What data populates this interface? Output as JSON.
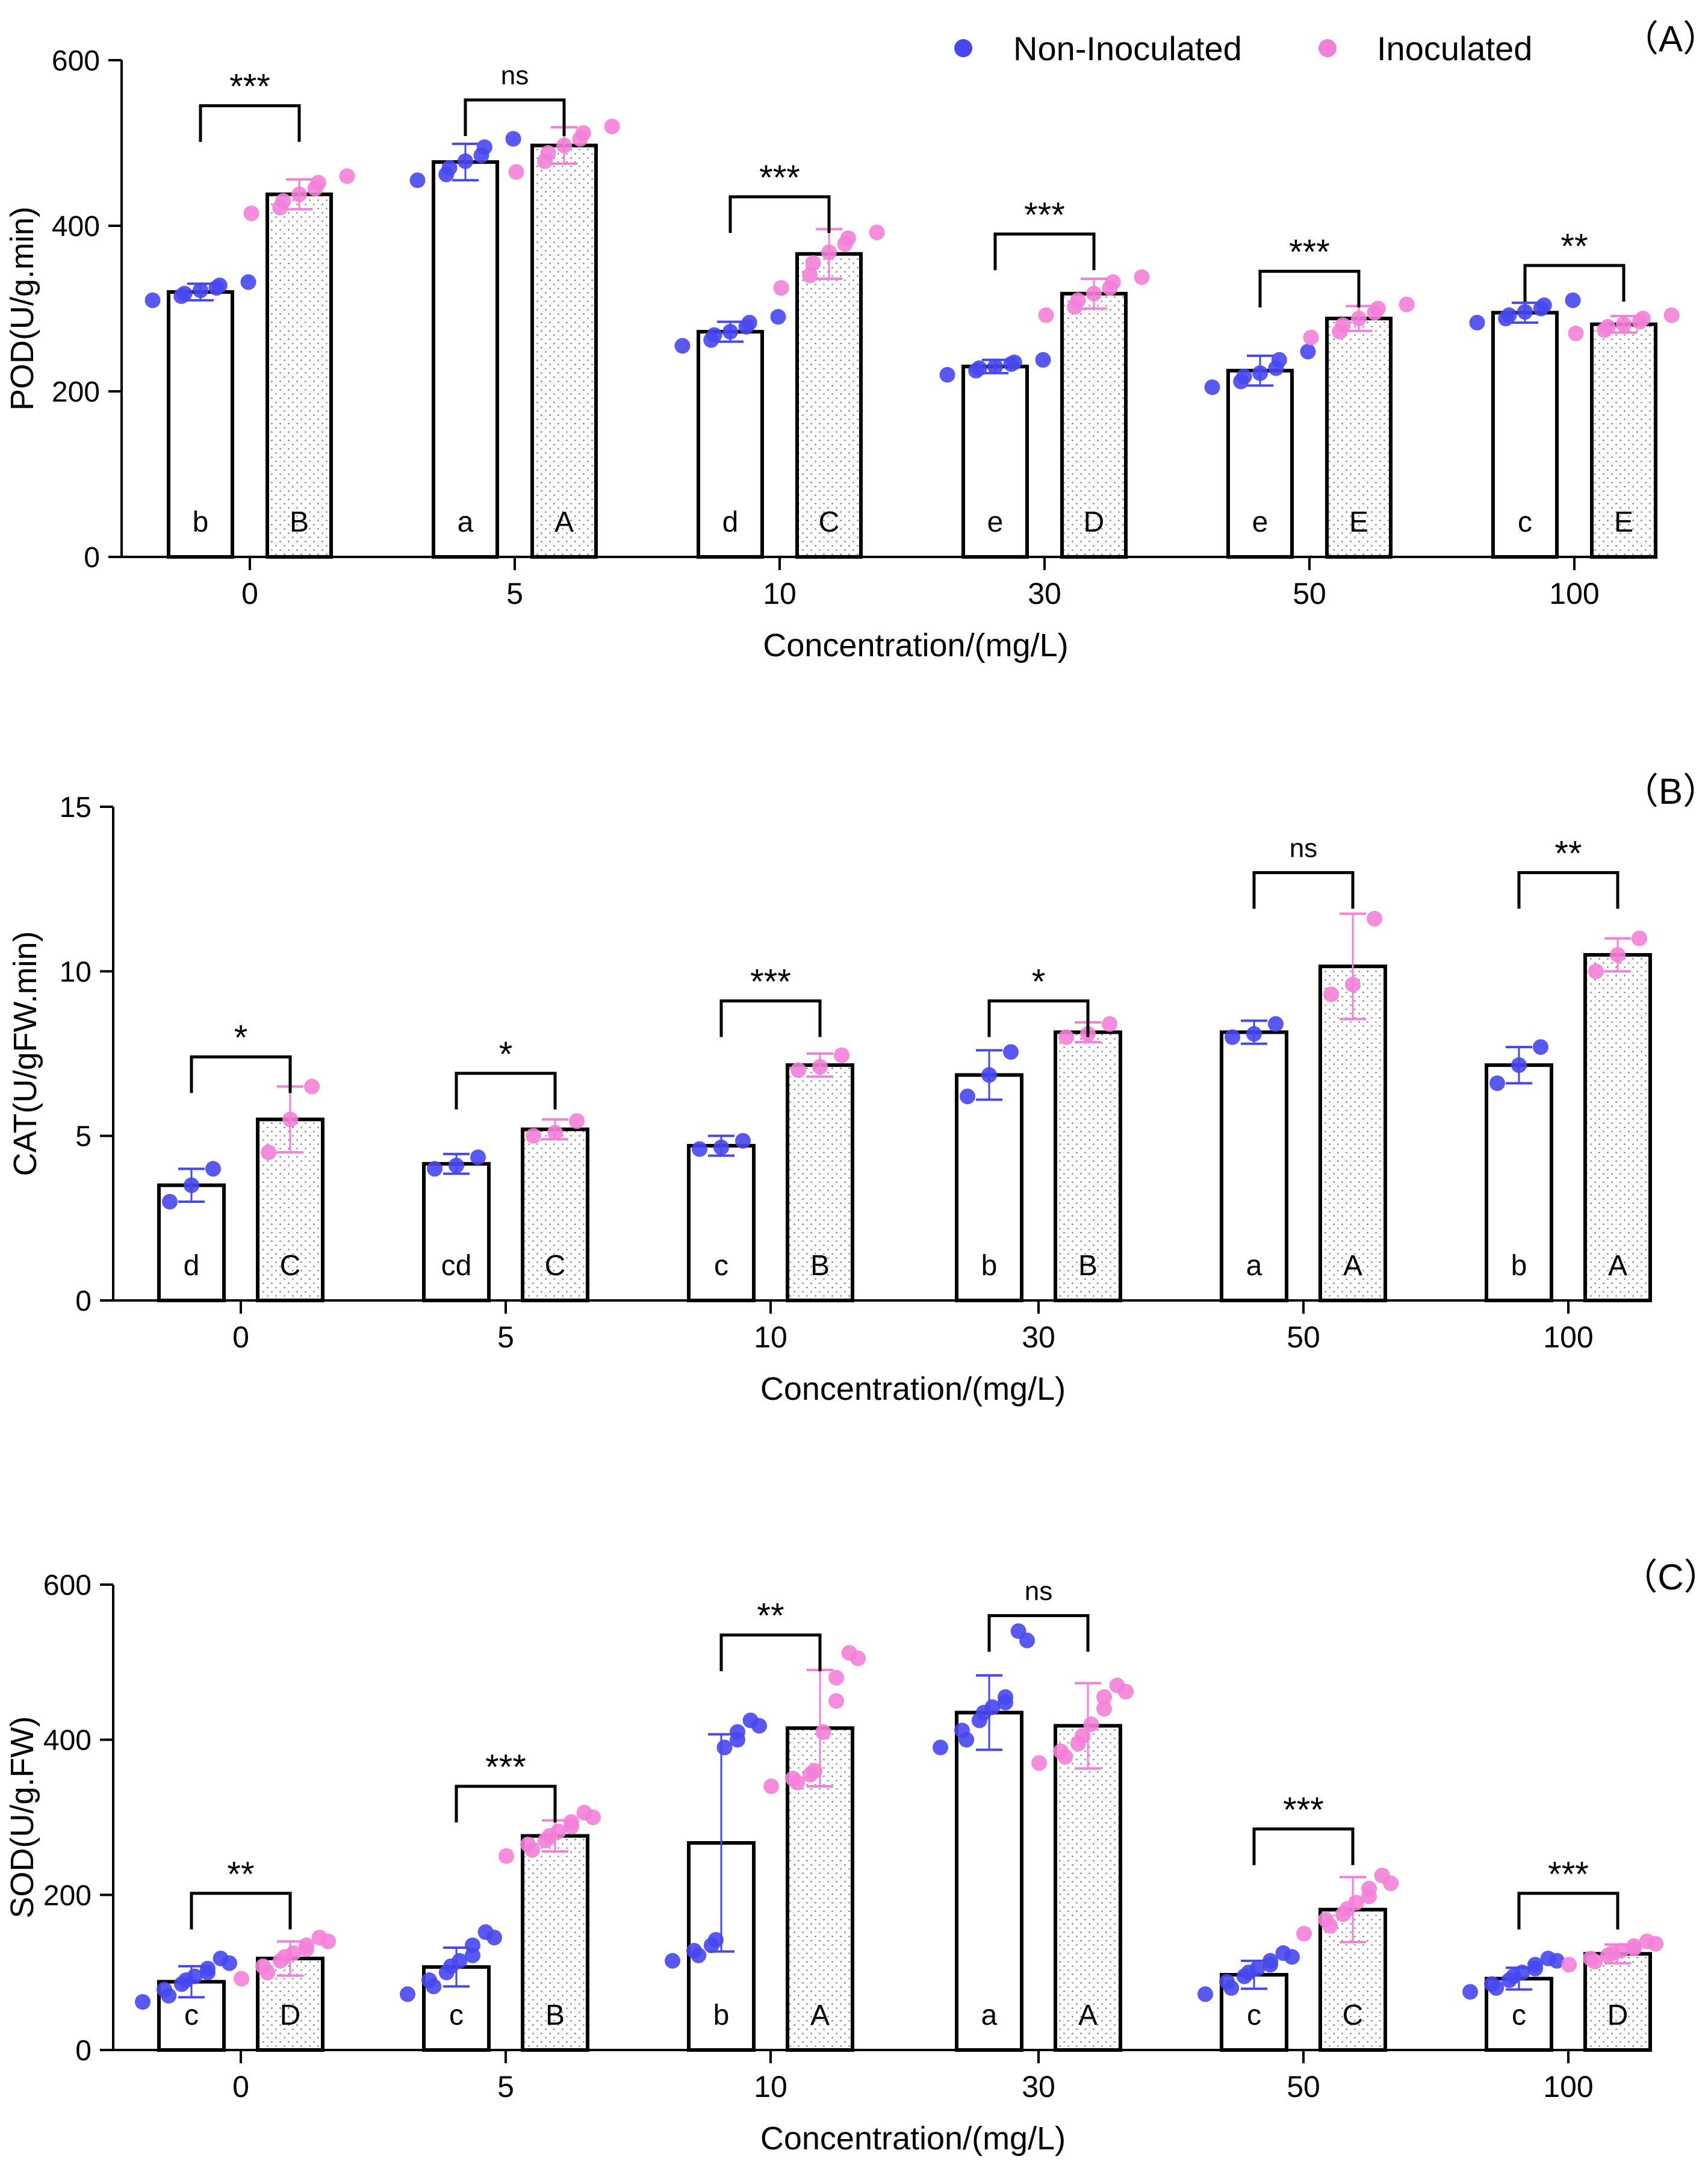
{
  "legend": {
    "items": [
      {
        "label": "Non-Inoculated",
        "color": "#4747f0"
      },
      {
        "label": "Inoculated",
        "color": "#f47fd8"
      }
    ]
  },
  "chart_data": [
    {
      "type": "bar",
      "panel_label": "（A）",
      "xlabel": "Concentration/(mg/L)",
      "ylabel": "POD(U/g.min)",
      "ylim": [
        0,
        600
      ],
      "yticks": [
        0,
        200,
        400,
        600
      ],
      "categories": [
        "0",
        "5",
        "10",
        "30",
        "50",
        "100"
      ],
      "series": [
        {
          "name": "Non-Inoculated",
          "values": [
            320,
            477,
            272,
            230,
            225,
            295
          ],
          "errors": [
            10,
            22,
            12,
            8,
            18,
            12
          ],
          "points": [
            [
              310,
              315,
              318,
              322,
              325,
              328,
              332
            ],
            [
              455,
              462,
              470,
              478,
              485,
              495,
              505
            ],
            [
              255,
              262,
              268,
              272,
              278,
              283,
              290
            ],
            [
              220,
              225,
              228,
              230,
              233,
              235,
              238
            ],
            [
              205,
              212,
              218,
              222,
              228,
              238,
              248
            ],
            [
              283,
              288,
              292,
              296,
              300,
              304,
              310
            ]
          ],
          "letters": [
            "b",
            "a",
            "d",
            "e",
            "e",
            "c"
          ]
        },
        {
          "name": "Inoculated",
          "values": [
            438,
            497,
            366,
            318,
            288,
            281
          ],
          "errors": [
            18,
            22,
            30,
            18,
            15,
            10
          ],
          "points": [
            [
              415,
              422,
              430,
              438,
              445,
              452,
              460
            ],
            [
              465,
              478,
              488,
              497,
              505,
              512,
              520
            ],
            [
              325,
              340,
              355,
              368,
              378,
              385,
              392
            ],
            [
              292,
              302,
              310,
              318,
              325,
              332,
              338
            ],
            [
              265,
              272,
              280,
              288,
              295,
              300,
              305
            ],
            [
              270,
              274,
              278,
              281,
              284,
              288,
              292
            ]
          ],
          "letters": [
            "B",
            "A",
            "C",
            "D",
            "E",
            "E"
          ]
        }
      ],
      "significance": [
        {
          "label": "***",
          "level": 545
        },
        {
          "label": "ns",
          "level": 552
        },
        {
          "label": "***",
          "level": 435
        },
        {
          "label": "***",
          "level": 390
        },
        {
          "label": "***",
          "level": 345
        },
        {
          "label": "**",
          "level": 352
        }
      ]
    },
    {
      "type": "bar",
      "panel_label": "（B）",
      "xlabel": "Concentration/(mg/L)",
      "ylabel": "CAT(U/gFW.min)",
      "ylim": [
        0,
        15
      ],
      "yticks": [
        0,
        5,
        10,
        15
      ],
      "categories": [
        "0",
        "5",
        "10",
        "30",
        "50",
        "100"
      ],
      "series": [
        {
          "name": "Non-Inoculated",
          "values": [
            3.5,
            4.15,
            4.7,
            6.85,
            8.15,
            7.15
          ],
          "errors": [
            0.5,
            0.3,
            0.3,
            0.75,
            0.35,
            0.55
          ],
          "points": [
            [
              3.0,
              3.5,
              4.0
            ],
            [
              4.0,
              4.1,
              4.35
            ],
            [
              4.6,
              4.65,
              4.85
            ],
            [
              6.2,
              6.85,
              7.55
            ],
            [
              8.0,
              8.1,
              8.4
            ],
            [
              6.6,
              7.15,
              7.7
            ]
          ],
          "letters": [
            "d",
            "cd",
            "c",
            "b",
            "a",
            "b"
          ]
        },
        {
          "name": "Inoculated",
          "values": [
            5.5,
            5.2,
            7.15,
            8.15,
            10.15,
            10.5
          ],
          "errors": [
            1.0,
            0.3,
            0.35,
            0.3,
            1.6,
            0.5
          ],
          "points": [
            [
              4.5,
              5.5,
              6.5
            ],
            [
              5.0,
              5.1,
              5.45
            ],
            [
              7.0,
              7.1,
              7.45
            ],
            [
              8.0,
              8.1,
              8.4
            ],
            [
              9.3,
              9.6,
              11.6
            ],
            [
              10.0,
              10.5,
              11.0
            ]
          ],
          "letters": [
            "C",
            "C",
            "B",
            "B",
            "A",
            "A"
          ]
        }
      ],
      "significance": [
        {
          "label": "*",
          "level": 7.4
        },
        {
          "label": "*",
          "level": 6.9
        },
        {
          "label": "***",
          "level": 9.1
        },
        {
          "label": "*",
          "level": 9.1
        },
        {
          "label": "ns",
          "level": 13.0
        },
        {
          "label": "**",
          "level": 13.0
        }
      ]
    },
    {
      "type": "bar",
      "panel_label": "（C）",
      "xlabel": "Concentration/(mg/L)",
      "ylabel": "SOD(U/g.FW)",
      "ylim": [
        0,
        600
      ],
      "yticks": [
        0,
        200,
        400,
        600
      ],
      "categories": [
        "0",
        "5",
        "10",
        "30",
        "50",
        "100"
      ],
      "series": [
        {
          "name": "Non-Inoculated",
          "values": [
            88,
            107,
            267,
            435,
            97,
            92
          ],
          "errors": [
            20,
            25,
            140,
            48,
            18,
            14
          ],
          "points": [
            [
              62,
              70,
              78,
              85,
              90,
              95,
              100,
              105,
              112,
              118
            ],
            [
              72,
              82,
              90,
              100,
              108,
              115,
              122,
              135,
              145,
              152
            ],
            [
              115,
              122,
              128,
              135,
              142,
              390,
              400,
              410,
              418,
              425
            ],
            [
              390,
              400,
              412,
              425,
              435,
              442,
              448,
              455,
              528,
              540
            ],
            [
              72,
              80,
              88,
              95,
              100,
              105,
              110,
              115,
              120,
              125
            ],
            [
              75,
              80,
              85,
              90,
              95,
              100,
              105,
              110,
              115,
              118
            ]
          ],
          "letters": [
            "c",
            "c",
            "b",
            "a",
            "c",
            "c"
          ]
        },
        {
          "name": "Inoculated",
          "values": [
            118,
            276,
            415,
            418,
            181,
            124
          ],
          "errors": [
            22,
            20,
            75,
            55,
            42,
            12
          ],
          "points": [
            [
              92,
              100,
              108,
              115,
              120,
              125,
              130,
              135,
              140,
              145
            ],
            [
              250,
              258,
              265,
              270,
              276,
              282,
              288,
              294,
              300,
              306
            ],
            [
              340,
              345,
              350,
              355,
              360,
              410,
              450,
              480,
              505,
              512
            ],
            [
              370,
              378,
              385,
              395,
              405,
              420,
              440,
              455,
              462,
              470
            ],
            [
              150,
              160,
              168,
              175,
              182,
              190,
              198,
              208,
              215,
              225
            ],
            [
              110,
              114,
              118,
              122,
              125,
              128,
              131,
              134,
              137,
              140
            ]
          ],
          "letters": [
            "D",
            "B",
            "A",
            "A",
            "C",
            "D"
          ]
        }
      ],
      "significance": [
        {
          "label": "**",
          "level": 202
        },
        {
          "label": "***",
          "level": 340
        },
        {
          "label": "**",
          "level": 535
        },
        {
          "label": "ns",
          "level": 560
        },
        {
          "label": "***",
          "level": 285
        },
        {
          "label": "***",
          "level": 202
        }
      ]
    }
  ]
}
